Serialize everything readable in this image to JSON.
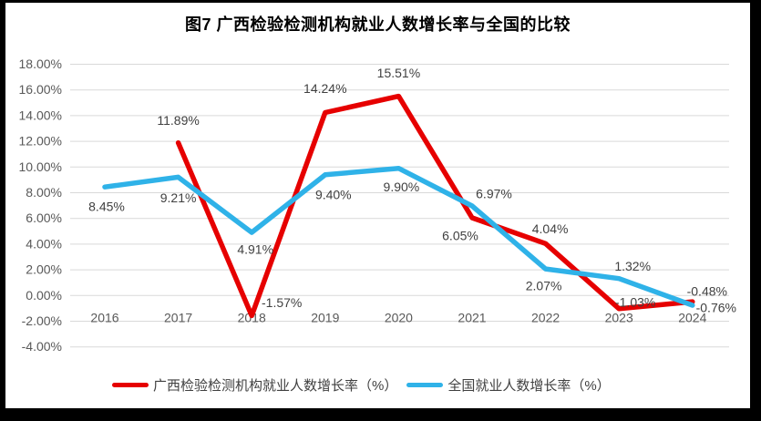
{
  "chart_data": {
    "type": "line",
    "title": "图7 广西检验检测机构就业人数增长率与全国的比较",
    "categories": [
      "2016",
      "2017",
      "2018",
      "2019",
      "2020",
      "2021",
      "2022",
      "2023",
      "2024"
    ],
    "y_ticks": [
      "18.00%",
      "16.00%",
      "14.00%",
      "12.00%",
      "10.00%",
      "8.00%",
      "6.00%",
      "4.00%",
      "2.00%",
      "0.00%",
      "-2.00%",
      "-4.00%"
    ],
    "ylim": [
      -4,
      18
    ],
    "y_tick_step": 2,
    "grid": true,
    "legend_position": "bottom",
    "series": [
      {
        "name": "广西检验检测机构就业人数增长率（%）",
        "color": "#e60000",
        "values": [
          null,
          11.89,
          -1.57,
          14.24,
          15.51,
          6.05,
          4.04,
          -1.03,
          -0.48
        ],
        "labels": [
          null,
          "11.89%",
          "-1.57%",
          "14.24%",
          "15.51%",
          "6.05%",
          "4.04%",
          "-1.03%",
          "-0.48%"
        ],
        "label_offsets": [
          null,
          [
            0,
            -24
          ],
          [
            33,
            -14
          ],
          [
            0,
            -26
          ],
          [
            0,
            -25
          ],
          [
            -13,
            20
          ],
          [
            5,
            -16
          ],
          [
            18,
            -7
          ],
          [
            16,
            -11
          ]
        ]
      },
      {
        "name": "全国就业人数增长率（%）",
        "color": "#2fb2e8",
        "values": [
          8.45,
          9.21,
          4.91,
          9.4,
          9.9,
          6.97,
          2.07,
          1.32,
          -0.76
        ],
        "labels": [
          "8.45%",
          "9.21%",
          "4.91%",
          "9.40%",
          "9.90%",
          "6.97%",
          "2.07%",
          "1.32%",
          "-0.76%"
        ],
        "label_offsets": [
          [
            2,
            22
          ],
          [
            0,
            23
          ],
          [
            4,
            19
          ],
          [
            9,
            22
          ],
          [
            3,
            21
          ],
          [
            24,
            -13
          ],
          [
            -2,
            19
          ],
          [
            15,
            -13
          ],
          [
            26,
            3
          ]
        ]
      }
    ]
  },
  "colors": {
    "frame": "#000000",
    "background": "#ffffff",
    "gridline": "#d9d9d9",
    "axis_text": "#595959",
    "data_label_text": "#404040",
    "title_text": "#000000"
  }
}
